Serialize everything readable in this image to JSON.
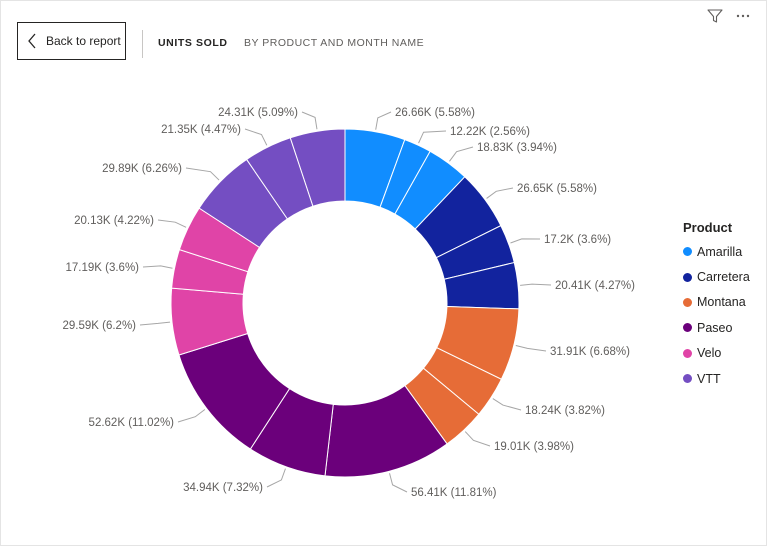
{
  "header": {
    "back_label": "Back to report",
    "title": "UNITS SOLD",
    "subtitle": "BY PRODUCT AND MONTH NAME"
  },
  "toolbar": {
    "filter_icon": "filter-icon",
    "more_icon": "more-options-icon"
  },
  "legend": {
    "title": "Product",
    "items": [
      {
        "name": "Amarilla",
        "color": "#118DFF"
      },
      {
        "name": "Carretera",
        "color": "#12239E"
      },
      {
        "name": "Montana",
        "color": "#E66C37"
      },
      {
        "name": "Paseo",
        "color": "#6B007B"
      },
      {
        "name": "Velo",
        "color": "#E044A7"
      },
      {
        "name": "VTT",
        "color": "#744EC2"
      }
    ]
  },
  "chart_data": {
    "type": "pie",
    "variant": "donut",
    "title": "UNITS SOLD",
    "subtitle": "BY PRODUCT AND MONTH NAME",
    "legend_title": "Product",
    "legend_position": "right",
    "slices": [
      {
        "product": "Amarilla",
        "value": 26660,
        "label": "26.66K (5.58%)"
      },
      {
        "product": "Amarilla",
        "value": 12220,
        "label": "12.22K (2.56%)"
      },
      {
        "product": "Amarilla",
        "value": 18830,
        "label": "18.83K (3.94%)"
      },
      {
        "product": "Carretera",
        "value": 26650,
        "label": "26.65K (5.58%)"
      },
      {
        "product": "Carretera",
        "value": 17200,
        "label": "17.2K (3.6%)"
      },
      {
        "product": "Carretera",
        "value": 20410,
        "label": "20.41K (4.27%)"
      },
      {
        "product": "Montana",
        "value": 31910,
        "label": "31.91K (6.68%)"
      },
      {
        "product": "Montana",
        "value": 18240,
        "label": "18.24K (3.82%)"
      },
      {
        "product": "Montana",
        "value": 19010,
        "label": "19.01K (3.98%)"
      },
      {
        "product": "Paseo",
        "value": 56410,
        "label": "56.41K (11.81%)"
      },
      {
        "product": "Paseo",
        "value": 34940,
        "label": "34.94K (7.32%)"
      },
      {
        "product": "Paseo",
        "value": 52620,
        "label": "52.62K (11.02%)"
      },
      {
        "product": "Velo",
        "value": 29590,
        "label": "29.59K (6.2%)"
      },
      {
        "product": "Velo",
        "value": 17190,
        "label": "17.19K (3.6%)"
      },
      {
        "product": "Velo",
        "value": 20130,
        "label": "20.13K (4.22%)"
      },
      {
        "product": "VTT",
        "value": 29890,
        "label": "29.89K (6.26%)"
      },
      {
        "product": "VTT",
        "value": 21350,
        "label": "21.35K (4.47%)"
      },
      {
        "product": "VTT",
        "value": 24310,
        "label": "24.31K (5.09%)"
      }
    ]
  }
}
